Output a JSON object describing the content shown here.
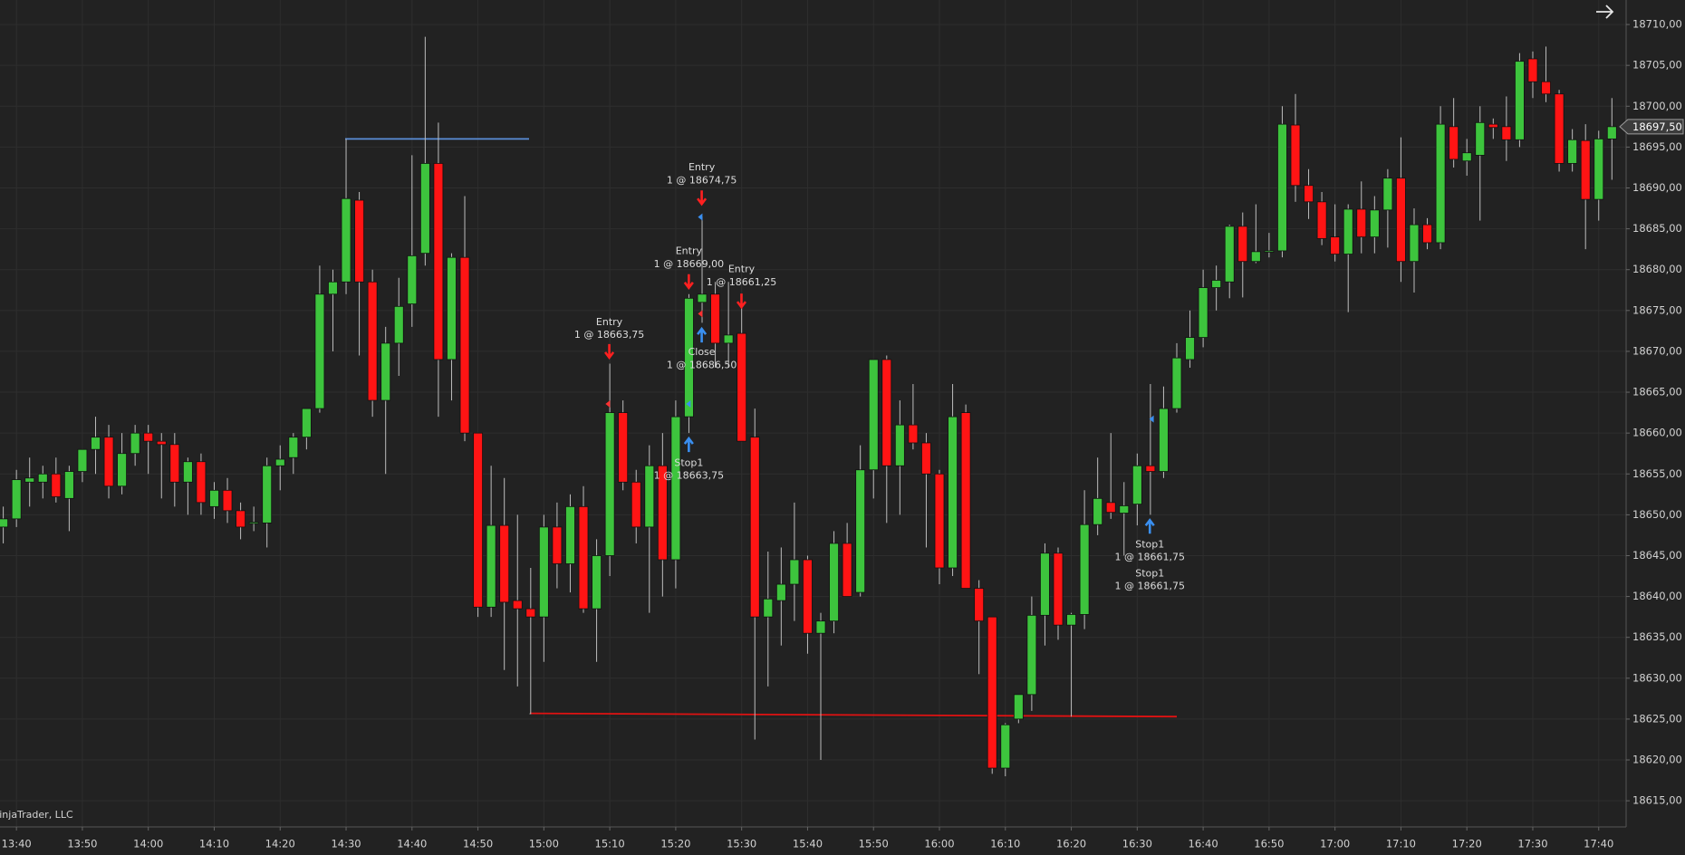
{
  "chart_data": {
    "type": "candlestick",
    "watermark": "NinjaTrader, LLC",
    "up_color": "#3dc43d",
    "down_color": "#ff1414",
    "wick_color": "#bdbdbd",
    "grid": true,
    "ylim": [
      18611.8,
      18713
    ],
    "yticks": [
      {
        "value": 18615,
        "label": "18615,00"
      },
      {
        "value": 18620,
        "label": "18620,00"
      },
      {
        "value": 18625,
        "label": "18625,00"
      },
      {
        "value": 18630,
        "label": "18630,00"
      },
      {
        "value": 18635,
        "label": "18635,00"
      },
      {
        "value": 18640,
        "label": "18640,00"
      },
      {
        "value": 18645,
        "label": "18645,00"
      },
      {
        "value": 18650,
        "label": "18650,00"
      },
      {
        "value": 18655,
        "label": "18655,00"
      },
      {
        "value": 18660,
        "label": "18660,00"
      },
      {
        "value": 18665,
        "label": "18665,00"
      },
      {
        "value": 18670,
        "label": "18670,00"
      },
      {
        "value": 18675,
        "label": "18675,00"
      },
      {
        "value": 18680,
        "label": "18680,00"
      },
      {
        "value": 18685,
        "label": "18685,00"
      },
      {
        "value": 18690,
        "label": "18690,00"
      },
      {
        "value": 18695,
        "label": "18695,00"
      },
      {
        "value": 18700,
        "label": "18700,00"
      },
      {
        "value": 18705,
        "label": "18705,00"
      },
      {
        "value": 18710,
        "label": "18710,00"
      }
    ],
    "last_price": {
      "value": 18697.5,
      "label": "18697,50"
    },
    "categories": [
      null,
      "13:40",
      null,
      null,
      null,
      null,
      "13:50",
      null,
      null,
      null,
      null,
      "14:00",
      null,
      null,
      null,
      null,
      "14:10",
      null,
      null,
      null,
      null,
      "14:20",
      null,
      null,
      null,
      null,
      "14:30",
      null,
      null,
      null,
      null,
      "14:40",
      null,
      null,
      null,
      null,
      "14:50",
      null,
      null,
      null,
      null,
      "15:00",
      null,
      null,
      null,
      null,
      "15:10",
      null,
      null,
      null,
      null,
      "15:20",
      null,
      null,
      null,
      null,
      "15:30",
      null,
      null,
      null,
      null,
      "15:40",
      null,
      null,
      null,
      null,
      "15:50",
      null,
      null,
      null,
      null,
      "16:00",
      null,
      null,
      null,
      null,
      "16:10",
      null,
      null,
      null,
      null,
      "16:20",
      null,
      null,
      null,
      null,
      "16:30",
      null,
      null,
      null,
      null,
      "16:40",
      null,
      null,
      null,
      null,
      "16:50",
      null,
      null,
      null,
      null,
      "17:00",
      null,
      null,
      null,
      null,
      "17:10",
      null,
      null,
      null,
      null,
      "17:20",
      null,
      null,
      null,
      null,
      "17:30",
      null,
      null,
      null,
      null,
      "17:40",
      null
    ],
    "open": [
      18648.5,
      18649.5,
      18654,
      18654,
      18655,
      18652,
      18655.3,
      18658,
      18659.5,
      18653.5,
      18657.5,
      18660,
      18659,
      18658.6,
      18654,
      18656.5,
      18651,
      18653,
      18650.5,
      18649,
      18649,
      18656,
      18657,
      18659.5,
      18663,
      18677,
      18678.5,
      18688.5,
      18678.5,
      18664,
      18671,
      18675.8,
      18682,
      18693,
      18669,
      18681.5,
      18660,
      18638.7,
      18648.7,
      18639.5,
      18638.5,
      18637.5,
      18648.5,
      18644,
      18651,
      18638.5,
      18645,
      18662.5,
      18654,
      18648.5,
      18656,
      18644.5,
      18662,
      18676,
      18677,
      18671,
      18672.2,
      18659.5,
      18637.5,
      18639.5,
      18641.5,
      18644.5,
      18635.5,
      18637,
      18646.5,
      18640.5,
      18655.5,
      18669,
      18656,
      18661,
      18658.8,
      18655,
      18643.5,
      18662.5,
      18641,
      18637.5,
      18619,
      18625,
      18628,
      18637.7,
      18645.3,
      18636.5,
      18637.8,
      18648.8,
      18651.5,
      18650.2,
      18651.3,
      18656,
      18655.3,
      18663,
      18669,
      18671.7,
      18677.8,
      18678.5,
      18685.3,
      18681,
      18682.2,
      18682.3,
      18697.7,
      18690.3,
      18688.3,
      18684,
      18681.9,
      18687.4,
      18684,
      18687.3,
      18691.2,
      18681,
      18685.5,
      18683.3,
      18697.5,
      18693.3,
      18694,
      18697.8,
      18697.5,
      18695.9,
      18705.8,
      18703,
      18701.5,
      18693,
      18695.8,
      18688.6,
      18696
    ],
    "high": [
      18651,
      18655.5,
      18657,
      18656,
      18657,
      18656,
      18658,
      18662,
      18661,
      18660,
      18661,
      18661,
      18660,
      18660,
      18657,
      18657.5,
      18654,
      18654.5,
      18651.5,
      18651,
      18657,
      18658.5,
      18660,
      18662.5,
      18680.5,
      18680,
      18696,
      18689.5,
      18680,
      18673,
      18679,
      18694,
      18708.5,
      18698,
      18682,
      18689,
      18660,
      18656,
      18654.5,
      18650,
      18643.5,
      18650,
      18651.5,
      18652.5,
      18653.5,
      18647,
      18668.5,
      18664,
      18655.5,
      18658.5,
      18660,
      18664,
      18677,
      18686.5,
      18678.5,
      18678.5,
      18675.5,
      18663,
      18645.5,
      18646,
      18651.5,
      18645,
      18638,
      18648,
      18649,
      18658.5,
      18669,
      18669.5,
      18664,
      18666,
      18660,
      18655.5,
      18666,
      18663.5,
      18642,
      18637.5,
      18624.5,
      18628,
      18640,
      18646.5,
      18646,
      18638,
      18653,
      18657,
      18660,
      18654,
      18657.5,
      18666,
      18665.7,
      18671,
      18675,
      18680,
      18680.5,
      18685.5,
      18687,
      18688,
      18684.5,
      18700,
      18701.5,
      18692.3,
      18689.5,
      18688,
      18688,
      18690.8,
      18689,
      18692.3,
      18696.2,
      18687.5,
      18686.3,
      18700,
      18701,
      18696,
      18700,
      18698.5,
      18701.2,
      18706.5,
      18706.7,
      18707.3,
      18702,
      18697.2,
      18697.8,
      18697,
      18701
    ],
    "low": [
      18646.5,
      18648.5,
      18651,
      18652,
      18651.5,
      18648,
      18654,
      18655,
      18652,
      18652.5,
      18656,
      18655,
      18652,
      18651,
      18650,
      18650,
      18649.5,
      18649,
      18647,
      18648,
      18646,
      18653,
      18655,
      18658,
      18662.5,
      18670,
      18677,
      18669.5,
      18662,
      18655,
      18667,
      18673,
      18680.5,
      18662,
      18664,
      18659,
      18637.5,
      18637.5,
      18631,
      18629,
      18625.6,
      18632,
      18641,
      18640.5,
      18638,
      18632,
      18642.5,
      18653,
      18646.5,
      18638,
      18640,
      18641,
      18660,
      18673.5,
      18668,
      18668,
      18659,
      18622.5,
      18629,
      18634,
      18637,
      18633,
      18620,
      18635.5,
      18640,
      18640,
      18652,
      18649,
      18650,
      18658,
      18646,
      18641.5,
      18642.5,
      18641,
      18630.5,
      18618.3,
      18618,
      18624.5,
      18626,
      18634,
      18634.7,
      18625.3,
      18636,
      18647.5,
      18649.5,
      18645,
      18648.7,
      18650,
      18654.5,
      18662.5,
      18668,
      18670.5,
      18675,
      18676.5,
      18676.6,
      18680.8,
      18681.5,
      18681.5,
      18688.3,
      18686.2,
      18683,
      18681,
      18674.8,
      18682,
      18682,
      18682.7,
      18678.5,
      18677.2,
      18682.5,
      18682.5,
      18692.5,
      18691.5,
      18686,
      18696,
      18693.3,
      18695,
      18701,
      18700.5,
      18692,
      18692,
      18682.5,
      18686,
      18691
    ],
    "close": [
      18649.5,
      18654.3,
      18654.5,
      18655,
      18652.2,
      18655.3,
      18658,
      18659.5,
      18653.5,
      18657.5,
      18660,
      18659,
      18658.6,
      18654,
      18656.5,
      18651.5,
      18653,
      18650.5,
      18648.5,
      18649.1,
      18656,
      18656.8,
      18659.5,
      18663,
      18677,
      18678.5,
      18688.7,
      18678.5,
      18664,
      18671,
      18675.5,
      18681.7,
      18693,
      18669,
      18681.5,
      18660,
      18638.7,
      18648.7,
      18639.3,
      18638.5,
      18637.5,
      18648.5,
      18644,
      18651,
      18638.5,
      18645,
      18662.5,
      18654,
      18648.5,
      18656,
      18644.5,
      18662,
      18676.5,
      18677,
      18671,
      18672,
      18659,
      18637.5,
      18639.7,
      18641.5,
      18644.5,
      18635.5,
      18637,
      18646.5,
      18640,
      18655.5,
      18669,
      18656,
      18661,
      18658.8,
      18655,
      18643.5,
      18662,
      18641,
      18637,
      18619,
      18624.3,
      18628,
      18637.7,
      18645.3,
      18636.5,
      18637.8,
      18648.8,
      18652,
      18650.3,
      18651.1,
      18656,
      18655.3,
      18663,
      18669.2,
      18671.7,
      18677.8,
      18678.7,
      18685.3,
      18681,
      18682.2,
      18682.3,
      18697.8,
      18690.3,
      18688.3,
      18683.8,
      18681.9,
      18687.4,
      18684,
      18687.3,
      18691.2,
      18681,
      18685.5,
      18683.3,
      18697.8,
      18693.5,
      18694.3,
      18698,
      18697.4,
      18695.9,
      18705.5,
      18703,
      18701.5,
      18693,
      18695.9,
      18688.6,
      18696,
      18697.5
    ],
    "lines": [
      {
        "color": "#5b8ed8",
        "values": [
          18696,
          18696
        ]
      },
      {
        "color": "#e01212",
        "values": [
          18625.7,
          18625.3
        ]
      }
    ],
    "annotations": [
      {
        "lines": [
          "Entry",
          "1 @ 18674,75"
        ]
      },
      {
        "lines": [
          "Entry",
          "1 @ 18669,00"
        ]
      },
      {
        "lines": [
          "Entry",
          "1 @ 18661,25"
        ]
      },
      {
        "lines": [
          "Entry",
          "1 @ 18663,75"
        ]
      },
      {
        "lines": [
          "Close",
          "1 @ 18686,50"
        ]
      },
      {
        "lines": [
          "Stop1",
          "1 @ 18663,75"
        ]
      },
      {
        "lines": [
          "Stop1",
          "1 @ 18661,75"
        ]
      },
      {
        "lines": [
          "Stop1",
          "1 @ 18661,75"
        ]
      }
    ]
  }
}
